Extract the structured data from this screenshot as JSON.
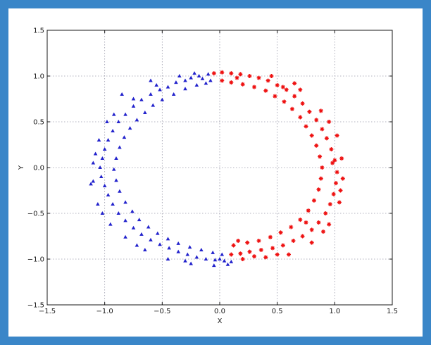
{
  "colors": {
    "frame": "#3a86c8",
    "plot_background": "#ffffff",
    "grid": "#9a9aaa",
    "series_a": "#2222cc",
    "series_b": "#ee1111"
  },
  "chart_data": {
    "type": "scatter",
    "title": "",
    "xlabel": "X",
    "ylabel": "Y",
    "xlim": [
      -1.5,
      1.5
    ],
    "ylim": [
      -1.5,
      1.5
    ],
    "x_ticks": [
      "−1.5",
      "−1.0",
      "−0.5",
      "0.0",
      "0.5",
      "1.0",
      "1.5"
    ],
    "y_ticks": [
      "−1.5",
      "−1.0",
      "−0.5",
      "0.0",
      "0.5",
      "1.0",
      "1.5"
    ],
    "grid": true,
    "legend": "none",
    "series": [
      {
        "marker": "triangle",
        "color": "#2222cc",
        "points": [
          [
            -0.1,
            1.02
          ],
          [
            -0.18,
            1.0
          ],
          [
            -0.25,
            0.98
          ],
          [
            -0.3,
            0.95
          ],
          [
            -0.38,
            0.93
          ],
          [
            -0.45,
            0.88
          ],
          [
            -0.52,
            0.85
          ],
          [
            -0.6,
            0.8
          ],
          [
            -0.68,
            0.74
          ],
          [
            -0.75,
            0.67
          ],
          [
            -0.82,
            0.58
          ],
          [
            -0.88,
            0.5
          ],
          [
            -0.93,
            0.4
          ],
          [
            -0.97,
            0.3
          ],
          [
            -1.0,
            0.2
          ],
          [
            -1.02,
            0.1
          ],
          [
            -1.04,
            0.0
          ],
          [
            -1.03,
            -0.1
          ],
          [
            -1.0,
            -0.2
          ],
          [
            -0.97,
            -0.3
          ],
          [
            -0.93,
            -0.4
          ],
          [
            -0.88,
            -0.5
          ],
          [
            -0.82,
            -0.58
          ],
          [
            -0.75,
            -0.66
          ],
          [
            -0.68,
            -0.73
          ],
          [
            -0.6,
            -0.79
          ],
          [
            -0.52,
            -0.84
          ],
          [
            -0.44,
            -0.88
          ],
          [
            -0.36,
            -0.92
          ],
          [
            -0.28,
            -0.95
          ],
          [
            -0.2,
            -0.98
          ],
          [
            -0.12,
            -1.0
          ],
          [
            -0.04,
            -1.01
          ],
          [
            0.04,
            -1.02
          ],
          [
            0.1,
            -1.03
          ],
          [
            -0.12,
            0.92
          ],
          [
            -0.2,
            0.9
          ],
          [
            -0.3,
            0.86
          ],
          [
            -0.4,
            0.8
          ],
          [
            -0.5,
            0.74
          ],
          [
            -0.58,
            0.68
          ],
          [
            -0.65,
            0.6
          ],
          [
            -0.72,
            0.52
          ],
          [
            -0.78,
            0.43
          ],
          [
            -0.83,
            0.33
          ],
          [
            -0.87,
            0.22
          ],
          [
            -0.9,
            0.1
          ],
          [
            -0.92,
            -0.02
          ],
          [
            -0.9,
            -0.14
          ],
          [
            -0.87,
            -0.26
          ],
          [
            -0.82,
            -0.38
          ],
          [
            -0.76,
            -0.48
          ],
          [
            -0.7,
            -0.57
          ],
          [
            -0.62,
            -0.65
          ],
          [
            -0.54,
            -0.72
          ],
          [
            -0.45,
            -0.78
          ],
          [
            -0.36,
            -0.83
          ],
          [
            -0.26,
            -0.87
          ],
          [
            -0.16,
            -0.9
          ],
          [
            -0.06,
            -0.93
          ],
          [
            0.02,
            -0.95
          ],
          [
            -0.35,
            1.0
          ],
          [
            -0.55,
            0.9
          ],
          [
            -0.75,
            0.75
          ],
          [
            -0.92,
            0.58
          ],
          [
            -1.05,
            0.3
          ],
          [
            -1.1,
            0.05
          ],
          [
            -1.1,
            -0.15
          ],
          [
            -1.06,
            -0.4
          ],
          [
            -0.95,
            -0.62
          ],
          [
            -0.82,
            -0.76
          ],
          [
            -0.65,
            -0.9
          ],
          [
            -0.45,
            -1.0
          ],
          [
            -0.25,
            -1.05
          ],
          [
            -0.05,
            -1.07
          ],
          [
            0.07,
            -1.06
          ],
          [
            -1.12,
            -0.18
          ],
          [
            -0.6,
            0.95
          ],
          [
            -0.85,
            0.8
          ],
          [
            -0.98,
            0.5
          ],
          [
            -1.08,
            0.15
          ],
          [
            -1.02,
            -0.5
          ],
          [
            -0.72,
            -0.85
          ],
          [
            -0.3,
            -1.02
          ],
          [
            0.0,
            -1.0
          ],
          [
            -0.22,
            1.03
          ],
          [
            -0.15,
            0.97
          ],
          [
            -0.08,
            0.95
          ]
        ]
      },
      {
        "marker": "star",
        "color": "#ee1111",
        "points": [
          [
            -0.05,
            1.03
          ],
          [
            0.02,
            1.04
          ],
          [
            0.1,
            1.03
          ],
          [
            0.18,
            1.02
          ],
          [
            0.26,
            1.0
          ],
          [
            0.34,
            0.98
          ],
          [
            0.42,
            0.95
          ],
          [
            0.5,
            0.9
          ],
          [
            0.58,
            0.85
          ],
          [
            0.65,
            0.78
          ],
          [
            0.72,
            0.7
          ],
          [
            0.78,
            0.61
          ],
          [
            0.84,
            0.52
          ],
          [
            0.89,
            0.42
          ],
          [
            0.93,
            0.32
          ],
          [
            0.97,
            0.2
          ],
          [
            1.0,
            0.08
          ],
          [
            1.02,
            -0.05
          ],
          [
            1.01,
            -0.17
          ],
          [
            0.99,
            -0.29
          ],
          [
            0.96,
            -0.4
          ],
          [
            0.92,
            -0.5
          ],
          [
            0.86,
            -0.6
          ],
          [
            0.8,
            -0.68
          ],
          [
            0.72,
            -0.75
          ],
          [
            0.64,
            -0.8
          ],
          [
            0.55,
            -0.85
          ],
          [
            0.46,
            -0.88
          ],
          [
            0.36,
            -0.9
          ],
          [
            0.26,
            -0.92
          ],
          [
            0.18,
            -0.94
          ],
          [
            0.1,
            -0.95
          ],
          [
            0.12,
            -0.85
          ],
          [
            0.02,
            0.95
          ],
          [
            0.1,
            0.93
          ],
          [
            0.2,
            0.91
          ],
          [
            0.3,
            0.88
          ],
          [
            0.4,
            0.84
          ],
          [
            0.48,
            0.78
          ],
          [
            0.56,
            0.72
          ],
          [
            0.63,
            0.64
          ],
          [
            0.7,
            0.55
          ],
          [
            0.75,
            0.45
          ],
          [
            0.8,
            0.35
          ],
          [
            0.84,
            0.24
          ],
          [
            0.87,
            0.12
          ],
          [
            0.89,
            0.0
          ],
          [
            0.88,
            -0.12
          ],
          [
            0.86,
            -0.24
          ],
          [
            0.82,
            -0.36
          ],
          [
            0.77,
            -0.47
          ],
          [
            0.7,
            -0.57
          ],
          [
            0.62,
            -0.65
          ],
          [
            0.53,
            -0.71
          ],
          [
            0.44,
            -0.76
          ],
          [
            0.34,
            -0.8
          ],
          [
            0.24,
            -0.82
          ],
          [
            0.16,
            -0.8
          ],
          [
            0.45,
            1.0
          ],
          [
            0.7,
            0.85
          ],
          [
            0.88,
            0.62
          ],
          [
            1.02,
            0.35
          ],
          [
            1.06,
            0.1
          ],
          [
            1.07,
            -0.12
          ],
          [
            1.04,
            -0.38
          ],
          [
            0.95,
            -0.62
          ],
          [
            0.8,
            -0.82
          ],
          [
            0.6,
            -0.95
          ],
          [
            0.4,
            -0.98
          ],
          [
            0.2,
            -1.0
          ],
          [
            0.65,
            0.92
          ],
          [
            0.95,
            0.5
          ],
          [
            1.05,
            -0.25
          ],
          [
            0.9,
            -0.7
          ],
          [
            0.5,
            -0.95
          ],
          [
            0.3,
            -0.97
          ],
          [
            0.15,
            0.98
          ],
          [
            0.55,
            0.88
          ],
          [
            0.98,
            0.05
          ],
          [
            0.75,
            -0.6
          ]
        ]
      }
    ]
  }
}
